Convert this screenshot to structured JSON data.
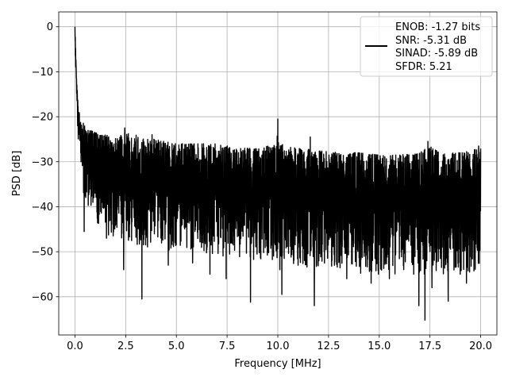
{
  "chart_data": {
    "type": "line",
    "title": "",
    "xlabel": "Frequency [MHz]",
    "ylabel": "PSD [dB]",
    "xlim": [
      -0.8,
      20.8
    ],
    "ylim": [
      -68.5,
      3.3
    ],
    "xticks": [
      0.0,
      2.5,
      5.0,
      7.5,
      10.0,
      12.5,
      15.0,
      17.5,
      20.0
    ],
    "xtick_labels": [
      "0.0",
      "2.5",
      "5.0",
      "7.5",
      "10.0",
      "12.5",
      "15.0",
      "17.5",
      "20.0"
    ],
    "yticks": [
      0,
      -10,
      -20,
      -30,
      -40,
      -50,
      -60
    ],
    "ytick_labels": [
      "0",
      "−10",
      "−20",
      "−30",
      "−40",
      "−50",
      "−60"
    ],
    "grid": true,
    "legend": {
      "placement": "top-right",
      "lines": [
        "ENOB: -1.27 bits",
        "SNR: -5.31 dB",
        "SINAD: -5.89 dB",
        "SFDR: 5.21"
      ]
    },
    "series": [
      {
        "color": "#000000",
        "x_range": [
          0.0,
          20.0
        ],
        "envelope_x": [
          0.0,
          0.02,
          0.05,
          0.08,
          0.12,
          0.17,
          0.25,
          0.35,
          0.5,
          0.75,
          1.0,
          1.5,
          2.0,
          2.5,
          3.0,
          3.5,
          4.0,
          5.0,
          6.0,
          7.0,
          8.0,
          9.0,
          9.95,
          10.0,
          10.05,
          11.0,
          12.0,
          13.0,
          14.0,
          15.0,
          16.0,
          17.0,
          17.5,
          18.0,
          19.0,
          20.0
        ],
        "envelope_top": [
          0,
          -3,
          -8,
          -12,
          -15,
          -18,
          -20,
          -21,
          -22,
          -23,
          -23.5,
          -24,
          -24.5,
          -23.5,
          -24,
          -25,
          -25,
          -26,
          -26,
          -26,
          -27,
          -27,
          -26,
          -20.5,
          -26,
          -27,
          -27.5,
          -28,
          -28,
          -28.5,
          -28.5,
          -28,
          -26.5,
          -28,
          -28,
          -27
        ],
        "envelope_bottom": [
          -5,
          -8,
          -14,
          -20,
          -25,
          -28,
          -30,
          -34,
          -40,
          -42,
          -44,
          -46,
          -47,
          -48,
          -50,
          -49,
          -49,
          -50,
          -50,
          -51,
          -51,
          -52,
          -52,
          -52,
          -52,
          -53,
          -54,
          -54,
          -55,
          -55,
          -55,
          -55,
          -55,
          -55,
          -55,
          -54
        ],
        "spikes": [
          {
            "x": 0.45,
            "y": -45.5
          },
          {
            "x": 1.55,
            "y": -47
          },
          {
            "x": 2.4,
            "y": -54
          },
          {
            "x": 3.3,
            "y": -60.5
          },
          {
            "x": 4.6,
            "y": -53
          },
          {
            "x": 5.8,
            "y": -52.5
          },
          {
            "x": 6.65,
            "y": -55
          },
          {
            "x": 7.45,
            "y": -56
          },
          {
            "x": 8.65,
            "y": -61.2
          },
          {
            "x": 10.1,
            "y": -54
          },
          {
            "x": 10.2,
            "y": -59.5
          },
          {
            "x": 11.0,
            "y": -53
          },
          {
            "x": 11.8,
            "y": -62
          },
          {
            "x": 13.4,
            "y": -56
          },
          {
            "x": 14.6,
            "y": -57
          },
          {
            "x": 15.5,
            "y": -56
          },
          {
            "x": 16.7,
            "y": -55
          },
          {
            "x": 16.95,
            "y": -62
          },
          {
            "x": 17.25,
            "y": -65.2
          },
          {
            "x": 17.6,
            "y": -58
          },
          {
            "x": 18.4,
            "y": -61
          },
          {
            "x": 19.3,
            "y": -57
          }
        ],
        "peaks": [
          {
            "x": 2.45,
            "y": -22.5
          },
          {
            "x": 3.8,
            "y": -24
          },
          {
            "x": 10.0,
            "y": -20.5
          },
          {
            "x": 11.6,
            "y": -24.5
          },
          {
            "x": 17.4,
            "y": -25.5
          },
          {
            "x": 19.9,
            "y": -26.5
          }
        ]
      }
    ]
  }
}
